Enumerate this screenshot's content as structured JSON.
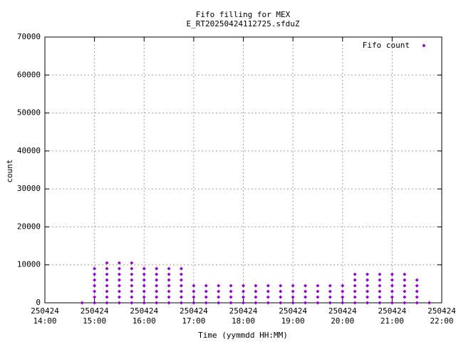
{
  "chart_data": {
    "type": "scatter",
    "title": "Fifo filling for MEX",
    "subtitle": "E_RT20250424112725.sfduZ",
    "x_label": "Time (yymmdd HH:MM)",
    "y_label": "count",
    "xlim": [
      14,
      22
    ],
    "ylim": [
      0,
      70000
    ],
    "xticks": [
      {
        "value": 14,
        "label": [
          "250424",
          "14:00"
        ]
      },
      {
        "value": 15,
        "label": [
          "250424",
          "15:00"
        ]
      },
      {
        "value": 16,
        "label": [
          "250424",
          "16:00"
        ]
      },
      {
        "value": 17,
        "label": [
          "250424",
          "17:00"
        ]
      },
      {
        "value": 18,
        "label": [
          "250424",
          "18:00"
        ]
      },
      {
        "value": 19,
        "label": [
          "250424",
          "19:00"
        ]
      },
      {
        "value": 20,
        "label": [
          "250424",
          "20:00"
        ]
      },
      {
        "value": 21,
        "label": [
          "250424",
          "21:00"
        ]
      },
      {
        "value": 22,
        "label": [
          "250424",
          "22:00"
        ]
      }
    ],
    "yticks": [
      0,
      10000,
      20000,
      30000,
      40000,
      50000,
      60000,
      70000
    ],
    "grid": true,
    "legend": "top-right",
    "series": [
      {
        "name": "Fifo count",
        "color": "#9400d3",
        "x": [
          14.75,
          15,
          15,
          15,
          15,
          15,
          15,
          15,
          15.25,
          15.25,
          15.25,
          15.25,
          15.25,
          15.25,
          15.25,
          15.25,
          15.5,
          15.5,
          15.5,
          15.5,
          15.5,
          15.5,
          15.5,
          15.5,
          15.75,
          15.75,
          15.75,
          15.75,
          15.75,
          15.75,
          15.75,
          15.75,
          16,
          16,
          16,
          16,
          16,
          16,
          16,
          16.25,
          16.25,
          16.25,
          16.25,
          16.25,
          16.25,
          16.25,
          16.5,
          16.5,
          16.5,
          16.5,
          16.5,
          16.5,
          16.5,
          16.75,
          16.75,
          16.75,
          16.75,
          16.75,
          16.75,
          16.75,
          17,
          17,
          17,
          17,
          17.25,
          17.25,
          17.25,
          17.25,
          17.5,
          17.5,
          17.5,
          17.5,
          17.75,
          17.75,
          17.75,
          17.75,
          18,
          18,
          18,
          18,
          18.25,
          18.25,
          18.25,
          18.25,
          18.5,
          18.5,
          18.5,
          18.5,
          18.75,
          18.75,
          18.75,
          18.75,
          19,
          19,
          19,
          19,
          19.25,
          19.25,
          19.25,
          19.25,
          19.5,
          19.5,
          19.5,
          19.5,
          19.75,
          19.75,
          19.75,
          19.75,
          20,
          20,
          20,
          20,
          20.25,
          20.25,
          20.25,
          20.25,
          20.25,
          20.25,
          20.5,
          20.5,
          20.5,
          20.5,
          20.5,
          20.5,
          20.75,
          20.75,
          20.75,
          20.75,
          20.75,
          20.75,
          21,
          21,
          21,
          21,
          21,
          21,
          21.25,
          21.25,
          21.25,
          21.25,
          21.25,
          21.25,
          21.5,
          21.5,
          21.5,
          21.5,
          21.5,
          21.75
        ],
        "values": [
          0,
          0,
          1500,
          3000,
          4500,
          6000,
          7500,
          9000,
          0,
          1500,
          3000,
          4500,
          6000,
          7500,
          9000,
          10500,
          0,
          1500,
          3000,
          4500,
          6000,
          7500,
          9000,
          10500,
          0,
          1500,
          3000,
          4500,
          6000,
          7500,
          9000,
          10500,
          0,
          1500,
          3000,
          4500,
          6000,
          7500,
          9000,
          0,
          1500,
          3000,
          4500,
          6000,
          7500,
          9000,
          0,
          1500,
          3000,
          4500,
          6000,
          7500,
          9000,
          0,
          1500,
          3000,
          4500,
          6000,
          7500,
          9000,
          0,
          1500,
          3000,
          4500,
          0,
          1500,
          3000,
          4500,
          0,
          1500,
          3000,
          4500,
          0,
          1500,
          3000,
          4500,
          0,
          1500,
          3000,
          4500,
          0,
          1500,
          3000,
          4500,
          0,
          1500,
          3000,
          4500,
          0,
          1500,
          3000,
          4500,
          0,
          1500,
          3000,
          4500,
          0,
          1500,
          3000,
          4500,
          0,
          1500,
          3000,
          4500,
          0,
          1500,
          3000,
          4500,
          0,
          1500,
          3000,
          4500,
          0,
          1500,
          3000,
          4500,
          6000,
          7500,
          0,
          1500,
          3000,
          4500,
          6000,
          7500,
          0,
          1500,
          3000,
          4500,
          6000,
          7500,
          0,
          1500,
          3000,
          4500,
          6000,
          7500,
          0,
          1500,
          3000,
          4500,
          6000,
          7500,
          0,
          1500,
          3000,
          4500,
          6000,
          0
        ]
      }
    ]
  }
}
